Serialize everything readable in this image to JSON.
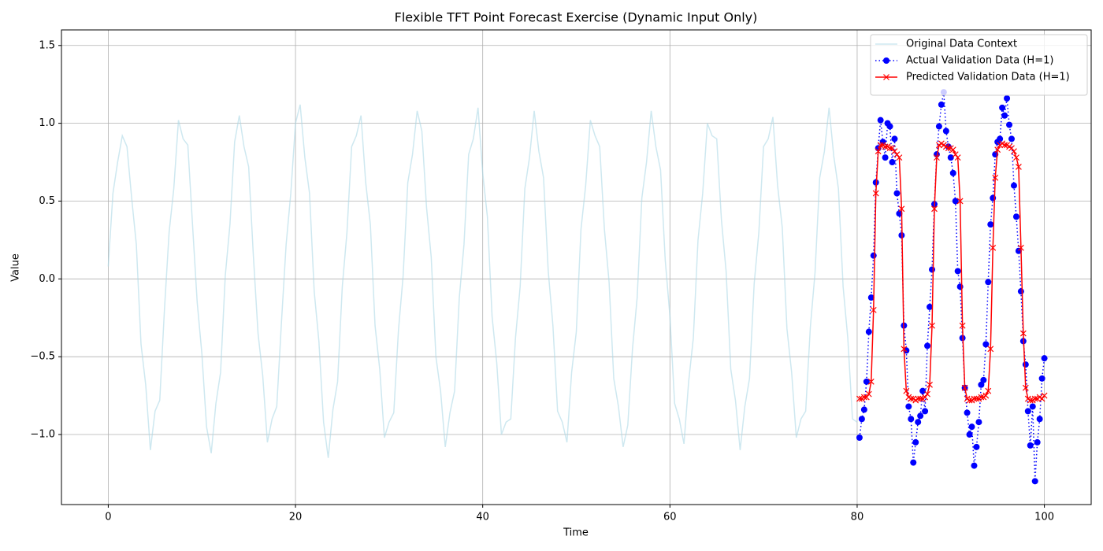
{
  "chart_data": {
    "type": "line",
    "title": "Flexible TFT Point Forecast Exercise (Dynamic Input Only)",
    "xlabel": "Time",
    "ylabel": "Value",
    "xlim": [
      -5,
      105
    ],
    "ylim": [
      -1.45,
      1.6
    ],
    "xticks": [
      0,
      20,
      40,
      60,
      80,
      100
    ],
    "yticks": [
      {
        "value": -1.0,
        "label": "−1.0"
      },
      {
        "value": -0.5,
        "label": "−0.5"
      },
      {
        "value": 0,
        "label": "0.0"
      },
      0.5,
      {
        "value": 1.0,
        "label": "1.0"
      },
      1.5
    ],
    "grid": true,
    "legend": "upper right",
    "series": [
      {
        "name": "Original Data Context",
        "color": "#add8e6",
        "opacity": 0.6,
        "linestyle": "solid",
        "marker": "none",
        "x": [
          0,
          0.5,
          1,
          1.5,
          2,
          2.5,
          3,
          3.5,
          4,
          4.5,
          5,
          5.5,
          6,
          6.5,
          7,
          7.5,
          8,
          8.5,
          9,
          9.5,
          10,
          10.5,
          11,
          11.5,
          12,
          12.5,
          13,
          13.5,
          14,
          14.5,
          15,
          15.5,
          16,
          16.5,
          17,
          17.5,
          18,
          18.5,
          19,
          19.5,
          20,
          20.5,
          21,
          21.5,
          22,
          22.5,
          23,
          23.5,
          24,
          24.5,
          25,
          25.5,
          26,
          26.5,
          27,
          27.5,
          28,
          28.5,
          29,
          29.5,
          30,
          30.5,
          31,
          31.5,
          32,
          32.5,
          33,
          33.5,
          34,
          34.5,
          35,
          35.5,
          36,
          36.5,
          37,
          37.5,
          38,
          38.5,
          39,
          39.5,
          40,
          40.5,
          41,
          41.5,
          42,
          42.5,
          43,
          43.5,
          44,
          44.5,
          45,
          45.5,
          46,
          46.5,
          47,
          47.5,
          48,
          48.5,
          49,
          49.5,
          50,
          50.5,
          51,
          51.5,
          52,
          52.5,
          53,
          53.5,
          54,
          54.5,
          55,
          55.5,
          56,
          56.5,
          57,
          57.5,
          58,
          58.5,
          59,
          59.5,
          60,
          60.5,
          61,
          61.5,
          62,
          62.5,
          63,
          63.5,
          64,
          64.5,
          65,
          65.5,
          66,
          66.5,
          67,
          67.5,
          68,
          68.5,
          69,
          69.5,
          70,
          70.5,
          71,
          71.5,
          72,
          72.5,
          73,
          73.5,
          74,
          74.5,
          75,
          75.5,
          76,
          76.5,
          77,
          77.5,
          78,
          78.5,
          79,
          79.5,
          80
        ],
        "values": [
          0.08,
          0.55,
          0.75,
          0.92,
          0.85,
          0.52,
          0.22,
          -0.42,
          -0.68,
          -1.1,
          -0.85,
          -0.78,
          -0.2,
          0.3,
          0.58,
          1.02,
          0.9,
          0.86,
          0.35,
          -0.15,
          -0.48,
          -0.95,
          -1.12,
          -0.8,
          -0.6,
          0.02,
          0.35,
          0.88,
          1.05,
          0.85,
          0.72,
          0.15,
          -0.35,
          -0.62,
          -1.05,
          -0.9,
          -0.82,
          -0.28,
          0.22,
          0.55,
          1.0,
          1.12,
          0.78,
          0.55,
          -0.08,
          -0.4,
          -0.92,
          -1.15,
          -0.84,
          -0.66,
          -0.05,
          0.3,
          0.85,
          0.92,
          1.05,
          0.62,
          0.35,
          -0.3,
          -0.58,
          -1.02,
          -0.92,
          -0.86,
          -0.33,
          0.02,
          0.62,
          0.8,
          1.08,
          0.95,
          0.46,
          0.14,
          -0.5,
          -0.72,
          -1.08,
          -0.86,
          -0.72,
          -0.12,
          0.22,
          0.8,
          0.9,
          1.1,
          0.68,
          0.4,
          -0.24,
          -0.54,
          -1.0,
          -0.92,
          -0.9,
          -0.38,
          -0.05,
          0.58,
          0.78,
          1.08,
          0.82,
          0.65,
          0.05,
          -0.3,
          -0.85,
          -0.92,
          -1.05,
          -0.6,
          -0.34,
          0.32,
          0.6,
          1.02,
          0.92,
          0.85,
          0.32,
          -0.02,
          -0.64,
          -0.82,
          -1.08,
          -0.94,
          -0.45,
          -0.12,
          0.52,
          0.75,
          1.08,
          0.85,
          0.7,
          0.12,
          -0.24,
          -0.8,
          -0.9,
          -1.06,
          -0.66,
          -0.38,
          0.25,
          0.55,
          1.0,
          0.92,
          0.9,
          0.38,
          0.05,
          -0.58,
          -0.78,
          -1.1,
          -0.82,
          -0.64,
          -0.03,
          0.3,
          0.85,
          0.9,
          1.04,
          0.6,
          0.33,
          -0.32,
          -0.6,
          -1.02,
          -0.9,
          -0.85,
          -0.31,
          0.04,
          0.65,
          0.82,
          1.1,
          0.79,
          0.58,
          -0.05,
          -0.38,
          -0.9,
          -0.92
        ]
      },
      {
        "name": "Actual Validation Data (H=1)",
        "color": "#0000ff",
        "opacity": 1,
        "linestyle": "dotted",
        "marker": "o",
        "x": [
          80.25,
          80.5,
          80.75,
          81,
          81.25,
          81.5,
          81.75,
          82,
          82.25,
          82.5,
          82.75,
          83,
          83.25,
          83.5,
          83.75,
          84,
          84.25,
          84.5,
          84.75,
          85,
          85.25,
          85.5,
          85.75,
          86,
          86.25,
          86.5,
          86.75,
          87,
          87.25,
          87.5,
          87.75,
          88,
          88.25,
          88.5,
          88.75,
          89,
          89.25,
          89.5,
          89.75,
          90,
          90.25,
          90.5,
          90.75,
          91,
          91.25,
          91.5,
          91.75,
          92,
          92.25,
          92.5,
          92.75,
          93,
          93.25,
          93.5,
          93.75,
          94,
          94.25,
          94.5,
          94.75,
          95,
          95.25,
          95.5,
          95.75,
          96,
          96.25,
          96.5,
          96.75,
          97,
          97.25,
          97.5,
          97.75,
          98,
          98.25,
          98.5,
          98.75,
          99,
          99.25,
          99.5,
          99.75,
          100
        ],
        "values": [
          -1.02,
          -0.9,
          -0.84,
          -0.66,
          -0.34,
          -0.12,
          0.15,
          0.62,
          0.84,
          1.02,
          0.88,
          0.78,
          1.0,
          0.98,
          0.75,
          0.9,
          0.55,
          0.42,
          0.28,
          -0.3,
          -0.46,
          -0.82,
          -0.9,
          -1.18,
          -1.05,
          -0.92,
          -0.88,
          -0.72,
          -0.85,
          -0.43,
          -0.18,
          0.06,
          0.48,
          0.8,
          0.98,
          1.12,
          1.2,
          0.95,
          0.85,
          0.78,
          0.68,
          0.5,
          0.05,
          -0.05,
          -0.38,
          -0.7,
          -0.86,
          -1.0,
          -0.95,
          -1.2,
          -1.08,
          -0.92,
          -0.68,
          -0.65,
          -0.42,
          -0.02,
          0.35,
          0.52,
          0.8,
          0.88,
          0.9,
          1.1,
          1.05,
          1.16,
          0.99,
          0.9,
          0.6,
          0.4,
          0.18,
          -0.08,
          -0.4,
          -0.55,
          -0.85,
          -1.07,
          -0.82,
          -1.3,
          -1.05,
          -0.9,
          -0.64,
          -0.51
        ]
      },
      {
        "name": "Predicted Validation Data (H=1)",
        "color": "#ff0000",
        "opacity": 1,
        "linestyle": "solid",
        "marker": "x",
        "x": [
          80.25,
          80.5,
          80.75,
          81,
          81.25,
          81.5,
          81.75,
          82,
          82.25,
          82.5,
          82.75,
          83,
          83.25,
          83.5,
          83.75,
          84,
          84.25,
          84.5,
          84.75,
          85,
          85.25,
          85.5,
          85.75,
          86,
          86.25,
          86.5,
          86.75,
          87,
          87.25,
          87.5,
          87.75,
          88,
          88.25,
          88.5,
          88.75,
          89,
          89.25,
          89.5,
          89.75,
          90,
          90.25,
          90.5,
          90.75,
          91,
          91.25,
          91.5,
          91.75,
          92,
          92.25,
          92.5,
          92.75,
          93,
          93.25,
          93.5,
          93.75,
          94,
          94.25,
          94.5,
          94.75,
          95,
          95.25,
          95.5,
          95.75,
          96,
          96.25,
          96.5,
          96.75,
          97,
          97.25,
          97.5,
          97.75,
          98,
          98.25,
          98.5,
          98.75,
          99,
          99.25,
          99.5,
          99.75,
          100
        ],
        "values": [
          -0.77,
          -0.77,
          -0.76,
          -0.76,
          -0.74,
          -0.66,
          -0.2,
          0.55,
          0.82,
          0.86,
          0.86,
          0.85,
          0.85,
          0.84,
          0.84,
          0.82,
          0.8,
          0.78,
          0.45,
          -0.45,
          -0.72,
          -0.76,
          -0.77,
          -0.77,
          -0.78,
          -0.77,
          -0.77,
          -0.77,
          -0.76,
          -0.74,
          -0.68,
          -0.3,
          0.45,
          0.78,
          0.86,
          0.87,
          0.86,
          0.85,
          0.84,
          0.84,
          0.83,
          0.8,
          0.78,
          0.5,
          -0.3,
          -0.7,
          -0.77,
          -0.78,
          -0.78,
          -0.77,
          -0.77,
          -0.77,
          -0.76,
          -0.76,
          -0.75,
          -0.72,
          -0.45,
          0.2,
          0.65,
          0.83,
          0.86,
          0.87,
          0.86,
          0.86,
          0.85,
          0.84,
          0.82,
          0.78,
          0.72,
          0.2,
          -0.35,
          -0.7,
          -0.77,
          -0.78,
          -0.78,
          -0.77,
          -0.77,
          -0.76,
          -0.77,
          -0.75
        ]
      }
    ]
  }
}
